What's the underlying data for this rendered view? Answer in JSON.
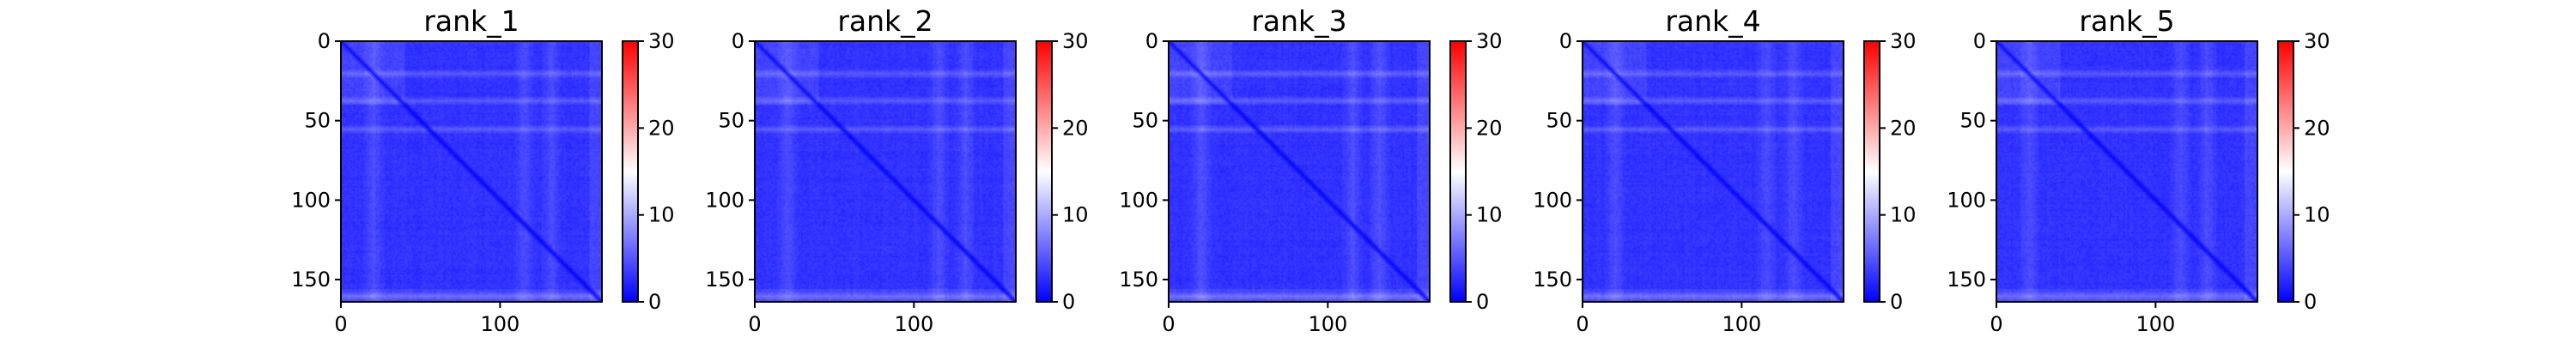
{
  "colors": {
    "cmap": [
      "#0000ff",
      "#ffffff",
      "#ff0000"
    ],
    "frame": "#000000",
    "text": "#000000"
  },
  "chart_data": [
    {
      "type": "heatmap",
      "title": "rank_1",
      "matrix_size": 164,
      "xlim": [
        0,
        164
      ],
      "ylim": [
        164,
        0
      ],
      "xticks": [
        0,
        100
      ],
      "yticks": [
        0,
        50,
        100,
        150
      ],
      "colorbar": {
        "range": [
          0,
          30
        ],
        "ticks": [
          0,
          10,
          20,
          30
        ],
        "colormap": "bwr"
      },
      "value_range_observed": [
        0,
        10
      ],
      "bright_rows": [
        20,
        37,
        55,
        160
      ],
      "bright_cols": [
        20,
        115,
        132
      ],
      "diagonal_value": 0,
      "grid": false
    },
    {
      "type": "heatmap",
      "title": "rank_2",
      "matrix_size": 164,
      "xlim": [
        0,
        164
      ],
      "ylim": [
        164,
        0
      ],
      "xticks": [
        0,
        100
      ],
      "yticks": [
        0,
        50,
        100,
        150
      ],
      "colorbar": {
        "range": [
          0,
          30
        ],
        "ticks": [
          0,
          10,
          20,
          30
        ],
        "colormap": "bwr"
      },
      "value_range_observed": [
        0,
        10
      ],
      "bright_rows": [
        20,
        37,
        55,
        160
      ],
      "bright_cols": [
        20,
        115,
        132
      ],
      "diagonal_value": 0,
      "grid": false
    },
    {
      "type": "heatmap",
      "title": "rank_3",
      "matrix_size": 164,
      "xlim": [
        0,
        164
      ],
      "ylim": [
        164,
        0
      ],
      "xticks": [
        0,
        100
      ],
      "yticks": [
        0,
        50,
        100,
        150
      ],
      "colorbar": {
        "range": [
          0,
          30
        ],
        "ticks": [
          0,
          10,
          20,
          30
        ],
        "colormap": "bwr"
      },
      "value_range_observed": [
        0,
        11
      ],
      "bright_rows": [
        20,
        37,
        55,
        160
      ],
      "bright_cols": [
        20,
        115,
        132
      ],
      "diagonal_value": 0,
      "grid": false
    },
    {
      "type": "heatmap",
      "title": "rank_4",
      "matrix_size": 164,
      "xlim": [
        0,
        164
      ],
      "ylim": [
        164,
        0
      ],
      "xticks": [
        0,
        100
      ],
      "yticks": [
        0,
        50,
        100,
        150
      ],
      "colorbar": {
        "range": [
          0,
          30
        ],
        "ticks": [
          0,
          10,
          20,
          30
        ],
        "colormap": "bwr"
      },
      "value_range_observed": [
        0,
        10
      ],
      "bright_rows": [
        20,
        37,
        55,
        160
      ],
      "bright_cols": [
        20,
        115,
        132
      ],
      "diagonal_value": 0,
      "grid": false
    },
    {
      "type": "heatmap",
      "title": "rank_5",
      "matrix_size": 164,
      "xlim": [
        0,
        164
      ],
      "ylim": [
        164,
        0
      ],
      "xticks": [
        0,
        100
      ],
      "yticks": [
        0,
        50,
        100,
        150
      ],
      "colorbar": {
        "range": [
          0,
          30
        ],
        "ticks": [
          0,
          10,
          20,
          30
        ],
        "colormap": "bwr"
      },
      "value_range_observed": [
        0,
        10
      ],
      "bright_rows": [
        20,
        37,
        55,
        160
      ],
      "bright_cols": [
        20,
        115,
        132
      ],
      "diagonal_value": 0,
      "grid": false
    }
  ]
}
